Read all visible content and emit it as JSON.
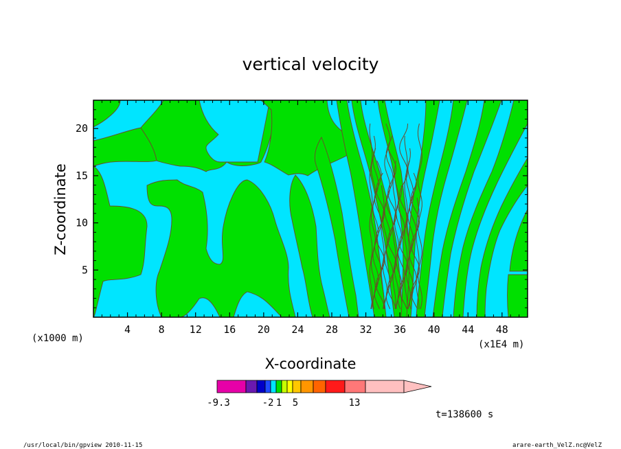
{
  "chart_data": {
    "type": "heatmap",
    "title": "vertical velocity",
    "xlabel": "X-coordinate",
    "ylabel": "Z-coordinate",
    "x_unit_left": "(x1000 m)",
    "x_unit_right": "(x1E4 m)",
    "xlim": [
      0,
      51
    ],
    "ylim": [
      0,
      23
    ],
    "x_ticks": [
      4,
      8,
      12,
      16,
      20,
      24,
      28,
      32,
      36,
      40,
      44,
      48
    ],
    "y_ticks": [
      5,
      10,
      15,
      20
    ],
    "x_tick_labels": [
      "4",
      "8",
      "12",
      "16",
      "20",
      "24",
      "28",
      "32",
      "36",
      "40",
      "44",
      "48"
    ],
    "y_tick_labels": [
      "5",
      "10",
      "15",
      "20"
    ],
    "fill_colors": {
      "negative_small": "#00e5ff",
      "positive_small": "#00e000"
    },
    "contour_line_color": "#6b4a2a",
    "colorbar": {
      "colors": [
        "#e600a8",
        "#6a19b0",
        "#0000c8",
        "#1f4cff",
        "#00e5ff",
        "#00e000",
        "#c8ff00",
        "#ffff00",
        "#ffc800",
        "#ff9600",
        "#ff6400",
        "#ff1a1a",
        "#ff7878",
        "#ffc0c0"
      ],
      "labels": [
        "-9.3",
        "-2",
        "1",
        "5",
        "13"
      ],
      "label_positions": [
        0,
        3,
        5,
        8,
        12
      ]
    },
    "time_label": "t=138600 s"
  },
  "footer": {
    "left": "/usr/local/bin/gpview   2010-11-15",
    "right": "arare-earth_VelZ.nc@VelZ"
  }
}
